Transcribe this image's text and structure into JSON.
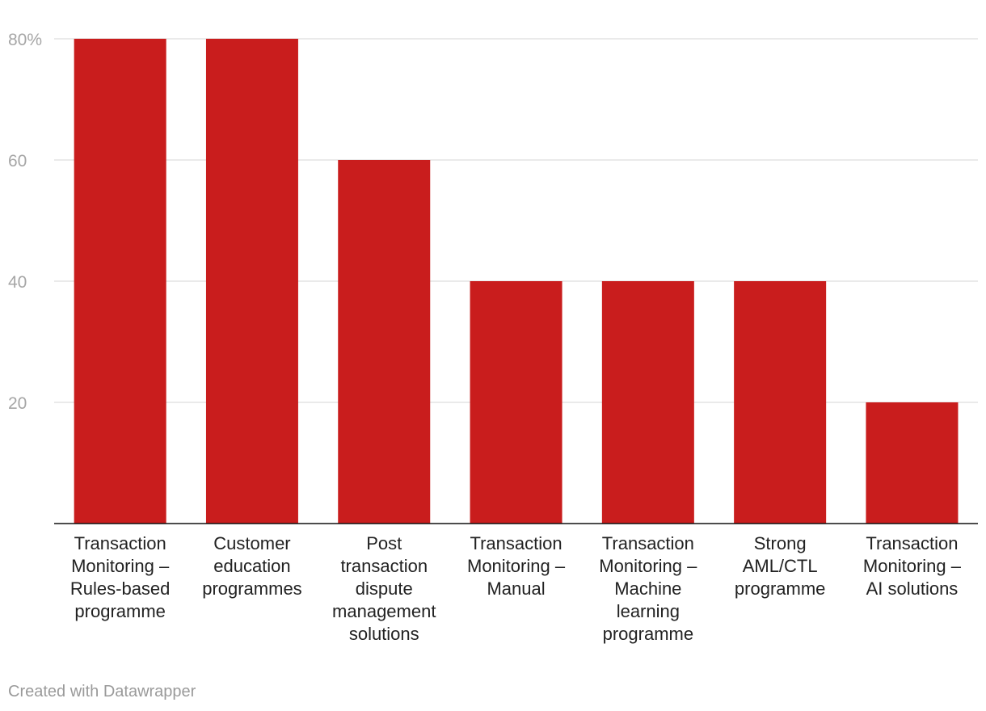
{
  "chart_data": {
    "type": "bar",
    "title": "",
    "xlabel": "",
    "ylabel": "",
    "categories": [
      [
        "Transaction",
        "Monitoring –",
        "Rules-based",
        "programme"
      ],
      [
        "Customer",
        "education",
        "programmes"
      ],
      [
        "Post",
        "transaction",
        "dispute",
        "management",
        "solutions"
      ],
      [
        "Transaction",
        "Monitoring –",
        "Manual"
      ],
      [
        "Transaction",
        "Monitoring –",
        "Machine",
        "learning",
        "programme"
      ],
      [
        "Strong",
        "AML/CTL",
        "programme"
      ],
      [
        "Transaction",
        "Monitoring –",
        "AI solutions"
      ]
    ],
    "values": [
      80,
      80,
      60,
      40,
      40,
      40,
      20
    ],
    "ylim": [
      0,
      80
    ],
    "yticks": [
      20,
      40,
      60,
      80
    ],
    "ytick_labels": [
      "20",
      "40",
      "60",
      "80%"
    ],
    "grid": true,
    "bar_color": "#c91d1d",
    "grid_color": "#e3e3e3",
    "axis_color": "#111111"
  },
  "footer": {
    "credit": "Created with Datawrapper"
  }
}
